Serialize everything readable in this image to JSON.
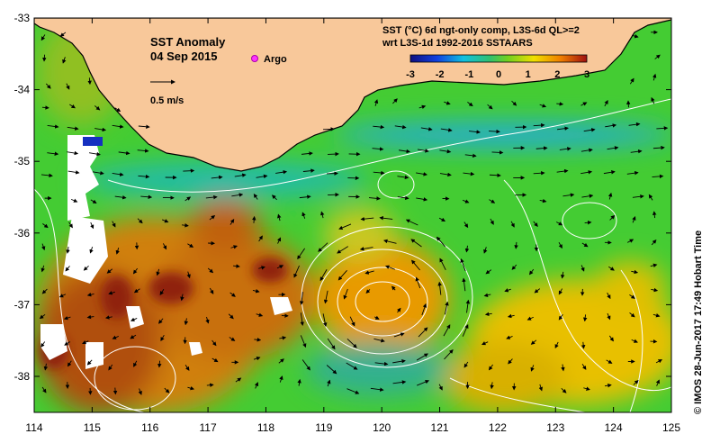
{
  "map": {
    "title": "SST Anomaly",
    "date": "04 Sep 2015",
    "argo_label": "Argo",
    "vector_scale_label": "0.5 m/s",
    "product_line1": "SST (°C) 6d ngt-only comp, L3S-6d QL>=2",
    "product_line2": "wrt L3S-1d 1992-2016 SSTAARS",
    "credit": "© IMOS 28-Jun-2017 17:49 Hobart Time",
    "lon_ticks": [
      "114",
      "115",
      "116",
      "117",
      "118",
      "119",
      "120",
      "121",
      "122",
      "123",
      "124",
      "125"
    ],
    "lat_ticks": [
      "-33",
      "-34",
      "-35",
      "-36",
      "-37",
      "-38"
    ],
    "colorbar_ticks": [
      "-3",
      "-2",
      "-1",
      "0",
      "1",
      "2",
      "3"
    ],
    "colors": {
      "land": "#f8c89a",
      "anom_neutral": "#44cc33",
      "anom_warm": "#e8a000",
      "anom_hot": "#b05010",
      "anom_cool": "#22bbaa",
      "anom_cold": "#1530c0",
      "argo": "#ff33ff"
    }
  }
}
